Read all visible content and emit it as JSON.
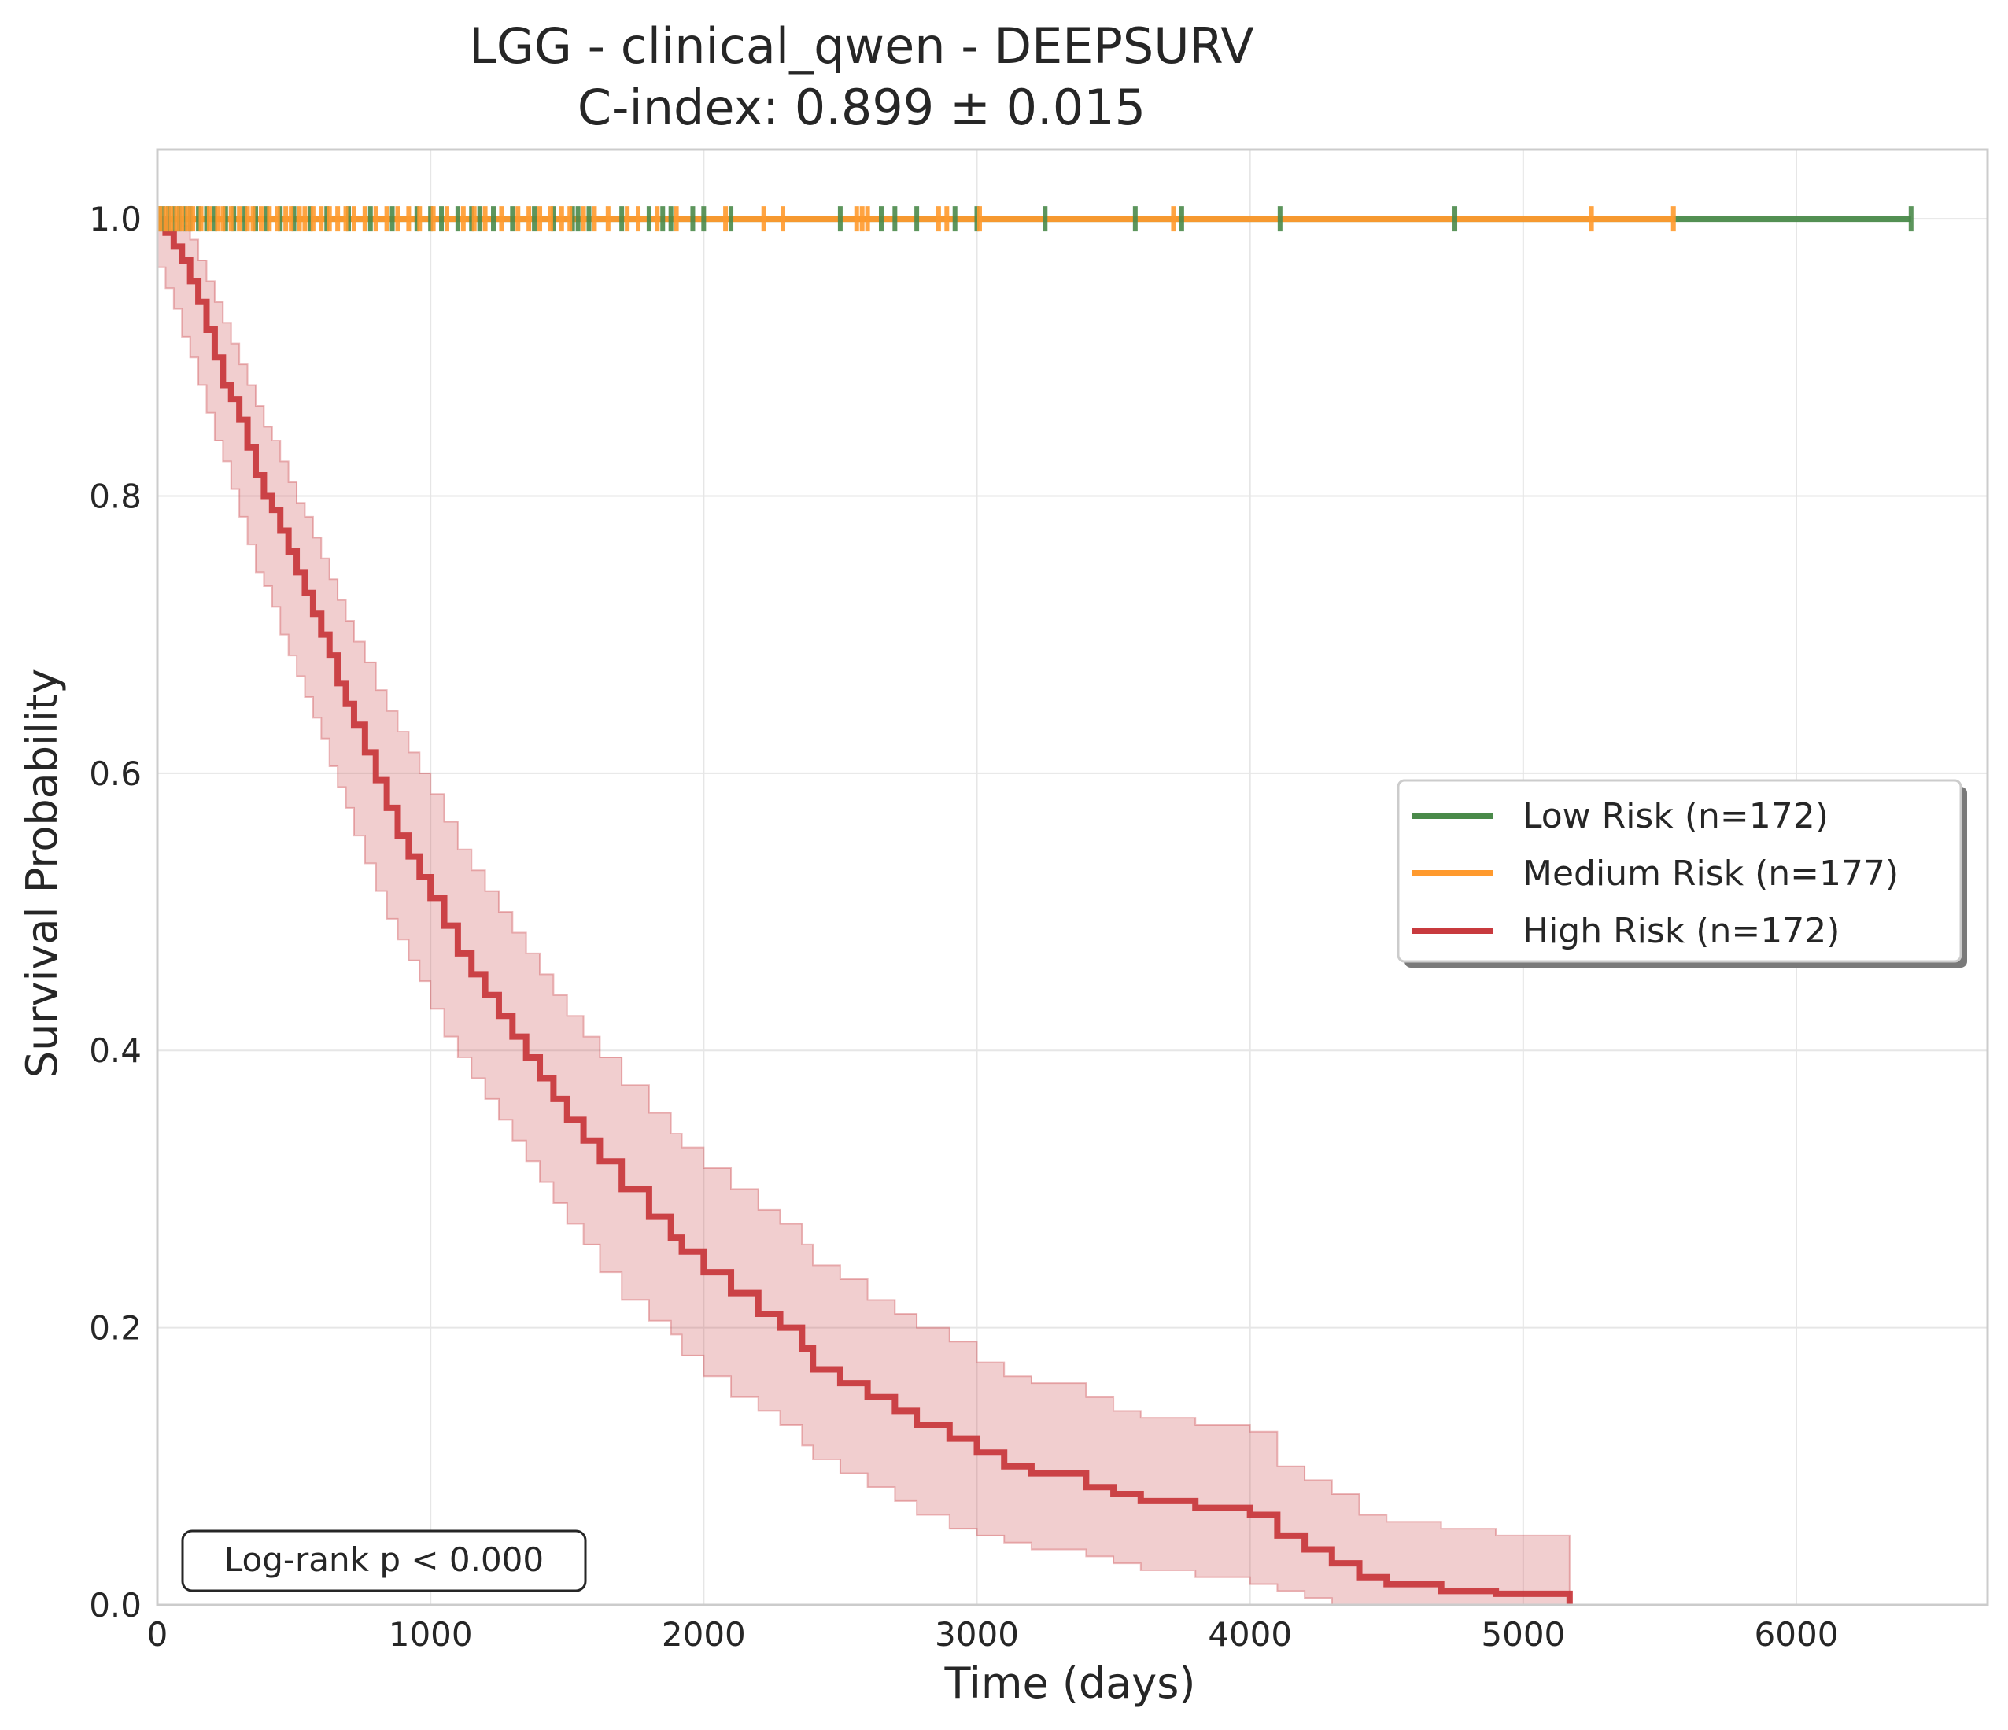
{
  "chart_data": {
    "type": "line",
    "title": "LGG - clinical_qwen - DEEPSURV",
    "subtitle": "C-index: 0.899 ± 0.015",
    "xlabel": "Time (days)",
    "ylabel": "Survival Probability",
    "xlim": [
      0,
      6700
    ],
    "ylim": [
      0,
      1.05
    ],
    "x_ticks": [
      "0",
      "1000",
      "2000",
      "3000",
      "4000",
      "5000",
      "6000"
    ],
    "y_ticks": [
      "0.0",
      "0.2",
      "0.4",
      "0.6",
      "0.8",
      "1.0"
    ],
    "grid": true,
    "legend_position": "center-right",
    "annotation": "Log-rank p < 0.000",
    "series": [
      {
        "name": "Low Risk (n=172)",
        "color": "#4a8a4a",
        "x": [
          0,
          6420
        ],
        "y": [
          1.0,
          1.0
        ],
        "censor_times": [
          5,
          20,
          40,
          60,
          80,
          100,
          120,
          150,
          180,
          210,
          250,
          280,
          320,
          360,
          400,
          450,
          500,
          560,
          620,
          700,
          780,
          860,
          950,
          1000,
          1040,
          1100,
          1150,
          1180,
          1230,
          1300,
          1380,
          1450,
          1520,
          1540,
          1580,
          1700,
          1800,
          1850,
          1880,
          1960,
          2000,
          2100,
          2500,
          2650,
          2700,
          2780,
          2920,
          3000,
          3250,
          3580,
          3750,
          4110,
          4750,
          6420
        ]
      },
      {
        "name": "Medium Risk (n=177)",
        "color": "#ff9a2e",
        "x": [
          0,
          5550
        ],
        "y": [
          1.0,
          1.0
        ],
        "censor_times": [
          10,
          30,
          50,
          70,
          90,
          110,
          130,
          160,
          190,
          220,
          240,
          270,
          300,
          330,
          350,
          380,
          410,
          440,
          470,
          490,
          520,
          540,
          570,
          600,
          630,
          660,
          690,
          720,
          760,
          800,
          840,
          880,
          920,
          960,
          1010,
          1060,
          1120,
          1160,
          1200,
          1260,
          1320,
          1360,
          1400,
          1440,
          1480,
          1510,
          1560,
          1600,
          1650,
          1720,
          1760,
          1830,
          1900,
          2080,
          2220,
          2290,
          2560,
          2580,
          2600,
          2860,
          2890,
          3010,
          3720,
          5250,
          5550
        ]
      },
      {
        "name": "High Risk (n=172)",
        "color": "#c83a3e",
        "x": [
          0,
          30,
          60,
          90,
          120,
          150,
          180,
          210,
          240,
          270,
          300,
          330,
          360,
          390,
          420,
          450,
          480,
          510,
          540,
          570,
          600,
          630,
          660,
          690,
          720,
          760,
          800,
          840,
          880,
          920,
          960,
          1000,
          1050,
          1100,
          1150,
          1200,
          1250,
          1300,
          1350,
          1400,
          1450,
          1500,
          1560,
          1620,
          1700,
          1800,
          1880,
          1920,
          2000,
          2100,
          2200,
          2280,
          2360,
          2400,
          2500,
          2600,
          2700,
          2780,
          2900,
          3000,
          3100,
          3200,
          3400,
          3500,
          3600,
          3800,
          4000,
          4100,
          4200,
          4300,
          4400,
          4500,
          4700,
          4900,
          5170
        ],
        "y": [
          1.0,
          0.99,
          0.98,
          0.97,
          0.955,
          0.94,
          0.92,
          0.9,
          0.88,
          0.87,
          0.855,
          0.835,
          0.815,
          0.8,
          0.79,
          0.775,
          0.76,
          0.745,
          0.73,
          0.715,
          0.7,
          0.685,
          0.665,
          0.65,
          0.635,
          0.615,
          0.595,
          0.575,
          0.555,
          0.54,
          0.525,
          0.51,
          0.49,
          0.47,
          0.455,
          0.44,
          0.425,
          0.41,
          0.395,
          0.38,
          0.365,
          0.35,
          0.335,
          0.32,
          0.3,
          0.28,
          0.265,
          0.255,
          0.24,
          0.225,
          0.21,
          0.2,
          0.185,
          0.17,
          0.16,
          0.15,
          0.14,
          0.13,
          0.12,
          0.11,
          0.1,
          0.095,
          0.085,
          0.08,
          0.075,
          0.07,
          0.065,
          0.05,
          0.04,
          0.03,
          0.02,
          0.015,
          0.01,
          0.008,
          0.0
        ],
        "ci_upper": [
          1.0,
          1.0,
          1.0,
          0.995,
          0.985,
          0.97,
          0.955,
          0.94,
          0.925,
          0.91,
          0.895,
          0.88,
          0.865,
          0.85,
          0.84,
          0.825,
          0.81,
          0.795,
          0.785,
          0.77,
          0.755,
          0.74,
          0.725,
          0.71,
          0.695,
          0.68,
          0.66,
          0.645,
          0.63,
          0.615,
          0.6,
          0.585,
          0.565,
          0.545,
          0.53,
          0.515,
          0.5,
          0.485,
          0.47,
          0.455,
          0.44,
          0.425,
          0.41,
          0.395,
          0.375,
          0.355,
          0.34,
          0.33,
          0.315,
          0.3,
          0.285,
          0.275,
          0.26,
          0.245,
          0.235,
          0.22,
          0.21,
          0.2,
          0.19,
          0.175,
          0.165,
          0.16,
          0.15,
          0.14,
          0.135,
          0.13,
          0.125,
          0.1,
          0.09,
          0.08,
          0.065,
          0.06,
          0.055,
          0.05,
          0.05
        ],
        "ci_lower": [
          0.98,
          0.965,
          0.95,
          0.935,
          0.915,
          0.9,
          0.88,
          0.86,
          0.84,
          0.825,
          0.805,
          0.785,
          0.765,
          0.745,
          0.735,
          0.72,
          0.7,
          0.685,
          0.67,
          0.655,
          0.64,
          0.625,
          0.605,
          0.59,
          0.575,
          0.555,
          0.535,
          0.515,
          0.495,
          0.48,
          0.465,
          0.45,
          0.43,
          0.41,
          0.395,
          0.38,
          0.365,
          0.35,
          0.335,
          0.32,
          0.305,
          0.29,
          0.275,
          0.26,
          0.24,
          0.22,
          0.205,
          0.195,
          0.18,
          0.165,
          0.15,
          0.14,
          0.13,
          0.115,
          0.105,
          0.095,
          0.085,
          0.075,
          0.065,
          0.055,
          0.05,
          0.045,
          0.04,
          0.035,
          0.03,
          0.025,
          0.02,
          0.015,
          0.01,
          0.005,
          0.0,
          0.0,
          0.0,
          0.0,
          0.0
        ]
      }
    ]
  }
}
